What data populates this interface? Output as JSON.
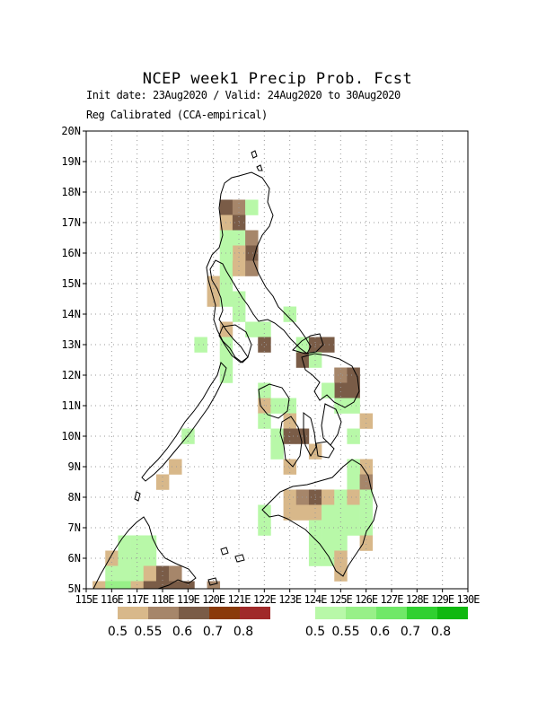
{
  "title": "NCEP week1 Precip Prob. Fcst",
  "subtitle1": "Init date: 23Aug2020 / Valid: 24Aug2020 to 30Aug2020",
  "subtitle2": "Reg Calibrated (CCA-empirical)",
  "map": {
    "lon_range": [
      115,
      130
    ],
    "lat_range": [
      5,
      20
    ],
    "grid": true,
    "lat_labels": [
      "5N",
      "6N",
      "7N",
      "8N",
      "9N",
      "10N",
      "11N",
      "12N",
      "13N",
      "14N",
      "15N",
      "16N",
      "17N",
      "18N",
      "19N",
      "20N"
    ],
    "lon_labels": [
      "115E",
      "116E",
      "117E",
      "118E",
      "119E",
      "120E",
      "121E",
      "122E",
      "123E",
      "124E",
      "125E",
      "126E",
      "127E",
      "128E",
      "129E",
      "130E"
    ]
  },
  "legend_below": {
    "labels": [
      "0.5",
      "0.55",
      "0.6",
      "0.7",
      "0.8"
    ],
    "colors": [
      "#d8b88a",
      "#a6866a",
      "#7a5c47",
      "#8a3a0a",
      "#a02a2a"
    ]
  },
  "legend_above": {
    "labels": [
      "0.5",
      "0.55",
      "0.6",
      "0.7",
      "0.8"
    ],
    "colors": [
      "#b8f8a8",
      "#98f088",
      "#70e868",
      "#30d030",
      "#10b810"
    ]
  },
  "colors": {
    "below": [
      "#d8b88a",
      "#a6866a",
      "#7a5c47"
    ],
    "above": [
      "#b8f8a8",
      "#98f088",
      "#70e868"
    ]
  },
  "cells": [
    {
      "lon": 120.5,
      "lat": 17.5,
      "cat": "B",
      "level": 3
    },
    {
      "lon": 121.0,
      "lat": 17.5,
      "cat": "B",
      "level": 2
    },
    {
      "lon": 121.5,
      "lat": 17.5,
      "cat": "A",
      "level": 1
    },
    {
      "lon": 120.5,
      "lat": 17.0,
      "cat": "B",
      "level": 1
    },
    {
      "lon": 121.0,
      "lat": 17.0,
      "cat": "B",
      "level": 3
    },
    {
      "lon": 121.0,
      "lat": 16.5,
      "cat": "A",
      "level": 1
    },
    {
      "lon": 120.5,
      "lat": 16.5,
      "cat": "A",
      "level": 1
    },
    {
      "lon": 121.5,
      "lat": 16.5,
      "cat": "B",
      "level": 2
    },
    {
      "lon": 121.5,
      "lat": 16.0,
      "cat": "B",
      "level": 3
    },
    {
      "lon": 121.0,
      "lat": 16.0,
      "cat": "B",
      "level": 1
    },
    {
      "lon": 120.5,
      "lat": 16.0,
      "cat": "A",
      "level": 1
    },
    {
      "lon": 120.5,
      "lat": 15.5,
      "cat": "A",
      "level": 1
    },
    {
      "lon": 121.0,
      "lat": 15.5,
      "cat": "B",
      "level": 1
    },
    {
      "lon": 121.5,
      "lat": 15.5,
      "cat": "B",
      "level": 2
    },
    {
      "lon": 120.0,
      "lat": 15.0,
      "cat": "B",
      "level": 1
    },
    {
      "lon": 120.5,
      "lat": 15.0,
      "cat": "A",
      "level": 1
    },
    {
      "lon": 120.0,
      "lat": 14.5,
      "cat": "B",
      "level": 1
    },
    {
      "lon": 120.5,
      "lat": 14.5,
      "cat": "A",
      "level": 1
    },
    {
      "lon": 121.0,
      "lat": 14.5,
      "cat": "A",
      "level": 1
    },
    {
      "lon": 121.0,
      "lat": 14.0,
      "cat": "A",
      "level": 1
    },
    {
      "lon": 120.5,
      "lat": 13.5,
      "cat": "B",
      "level": 1
    },
    {
      "lon": 121.5,
      "lat": 13.5,
      "cat": "A",
      "level": 1
    },
    {
      "lon": 122.0,
      "lat": 13.5,
      "cat": "A",
      "level": 1
    },
    {
      "lon": 123.0,
      "lat": 14.0,
      "cat": "A",
      "level": 1
    },
    {
      "lon": 119.5,
      "lat": 13.0,
      "cat": "A",
      "level": 1
    },
    {
      "lon": 120.5,
      "lat": 13.0,
      "cat": "A",
      "level": 1
    },
    {
      "lon": 122.0,
      "lat": 13.0,
      "cat": "B",
      "level": 3
    },
    {
      "lon": 123.5,
      "lat": 13.0,
      "cat": "A",
      "level": 1
    },
    {
      "lon": 124.0,
      "lat": 13.0,
      "cat": "B",
      "level": 3
    },
    {
      "lon": 124.5,
      "lat": 13.0,
      "cat": "B",
      "level": 3
    },
    {
      "lon": 123.5,
      "lat": 12.5,
      "cat": "B",
      "level": 3
    },
    {
      "lon": 124.0,
      "lat": 12.5,
      "cat": "A",
      "level": 1
    },
    {
      "lon": 120.5,
      "lat": 12.5,
      "cat": "A",
      "level": 1
    },
    {
      "lon": 120.5,
      "lat": 12.0,
      "cat": "A",
      "level": 1
    },
    {
      "lon": 125.0,
      "lat": 12.0,
      "cat": "B",
      "level": 2
    },
    {
      "lon": 125.5,
      "lat": 12.0,
      "cat": "B",
      "level": 3
    },
    {
      "lon": 125.0,
      "lat": 11.5,
      "cat": "B",
      "level": 3
    },
    {
      "lon": 125.5,
      "lat": 11.5,
      "cat": "B",
      "level": 3
    },
    {
      "lon": 122.0,
      "lat": 11.5,
      "cat": "A",
      "level": 1
    },
    {
      "lon": 124.5,
      "lat": 11.5,
      "cat": "A",
      "level": 1
    },
    {
      "lon": 122.0,
      "lat": 11.0,
      "cat": "B",
      "level": 1
    },
    {
      "lon": 122.5,
      "lat": 11.0,
      "cat": "A",
      "level": 1
    },
    {
      "lon": 123.0,
      "lat": 11.0,
      "cat": "A",
      "level": 1
    },
    {
      "lon": 125.0,
      "lat": 11.0,
      "cat": "A",
      "level": 1
    },
    {
      "lon": 125.5,
      "lat": 11.0,
      "cat": "A",
      "level": 1
    },
    {
      "lon": 122.0,
      "lat": 10.5,
      "cat": "A",
      "level": 1
    },
    {
      "lon": 123.0,
      "lat": 10.5,
      "cat": "B",
      "level": 1
    },
    {
      "lon": 126.0,
      "lat": 10.5,
      "cat": "B",
      "level": 1
    },
    {
      "lon": 122.5,
      "lat": 10.0,
      "cat": "A",
      "level": 1
    },
    {
      "lon": 123.0,
      "lat": 10.0,
      "cat": "B",
      "level": 3
    },
    {
      "lon": 123.5,
      "lat": 10.0,
      "cat": "B",
      "level": 3
    },
    {
      "lon": 119.0,
      "lat": 10.0,
      "cat": "A",
      "level": 1
    },
    {
      "lon": 125.5,
      "lat": 10.0,
      "cat": "A",
      "level": 1
    },
    {
      "lon": 122.5,
      "lat": 9.5,
      "cat": "A",
      "level": 1
    },
    {
      "lon": 124.0,
      "lat": 9.5,
      "cat": "B",
      "level": 1
    },
    {
      "lon": 123.0,
      "lat": 9.0,
      "cat": "B",
      "level": 1
    },
    {
      "lon": 118.5,
      "lat": 9.0,
      "cat": "B",
      "level": 1
    },
    {
      "lon": 126.0,
      "lat": 9.0,
      "cat": "B",
      "level": 1
    },
    {
      "lon": 125.5,
      "lat": 9.0,
      "cat": "A",
      "level": 1
    },
    {
      "lon": 118.0,
      "lat": 8.5,
      "cat": "B",
      "level": 1
    },
    {
      "lon": 125.5,
      "lat": 8.5,
      "cat": "A",
      "level": 1
    },
    {
      "lon": 126.0,
      "lat": 8.5,
      "cat": "B",
      "level": 2
    },
    {
      "lon": 123.0,
      "lat": 8.0,
      "cat": "B",
      "level": 1
    },
    {
      "lon": 123.5,
      "lat": 8.0,
      "cat": "B",
      "level": 2
    },
    {
      "lon": 124.0,
      "lat": 8.0,
      "cat": "B",
      "level": 3
    },
    {
      "lon": 124.5,
      "lat": 8.0,
      "cat": "B",
      "level": 1
    },
    {
      "lon": 125.0,
      "lat": 8.0,
      "cat": "A",
      "level": 1
    },
    {
      "lon": 125.5,
      "lat": 8.0,
      "cat": "B",
      "level": 1
    },
    {
      "lon": 126.0,
      "lat": 8.0,
      "cat": "A",
      "level": 1
    },
    {
      "lon": 122.0,
      "lat": 7.5,
      "cat": "A",
      "level": 1
    },
    {
      "lon": 123.0,
      "lat": 7.5,
      "cat": "B",
      "level": 1
    },
    {
      "lon": 123.5,
      "lat": 7.5,
      "cat": "B",
      "level": 1
    },
    {
      "lon": 124.0,
      "lat": 7.5,
      "cat": "B",
      "level": 1
    },
    {
      "lon": 124.5,
      "lat": 7.5,
      "cat": "A",
      "level": 1
    },
    {
      "lon": 125.0,
      "lat": 7.5,
      "cat": "A",
      "level": 1
    },
    {
      "lon": 125.5,
      "lat": 7.5,
      "cat": "A",
      "level": 1
    },
    {
      "lon": 126.0,
      "lat": 7.5,
      "cat": "A",
      "level": 1
    },
    {
      "lon": 122.0,
      "lat": 7.0,
      "cat": "A",
      "level": 1
    },
    {
      "lon": 124.0,
      "lat": 7.0,
      "cat": "A",
      "level": 1
    },
    {
      "lon": 124.5,
      "lat": 7.0,
      "cat": "A",
      "level": 1
    },
    {
      "lon": 125.0,
      "lat": 7.0,
      "cat": "A",
      "level": 1
    },
    {
      "lon": 125.5,
      "lat": 7.0,
      "cat": "A",
      "level": 1
    },
    {
      "lon": 126.0,
      "lat": 7.0,
      "cat": "A",
      "level": 1
    },
    {
      "lon": 124.0,
      "lat": 6.5,
      "cat": "A",
      "level": 1
    },
    {
      "lon": 124.5,
      "lat": 6.5,
      "cat": "A",
      "level": 1
    },
    {
      "lon": 125.0,
      "lat": 6.5,
      "cat": "A",
      "level": 1
    },
    {
      "lon": 126.0,
      "lat": 6.5,
      "cat": "B",
      "level": 1
    },
    {
      "lon": 124.0,
      "lat": 6.0,
      "cat": "A",
      "level": 1
    },
    {
      "lon": 124.5,
      "lat": 6.0,
      "cat": "A",
      "level": 1
    },
    {
      "lon": 125.0,
      "lat": 6.0,
      "cat": "B",
      "level": 1
    },
    {
      "lon": 125.0,
      "lat": 5.5,
      "cat": "B",
      "level": 1
    },
    {
      "lon": 116.5,
      "lat": 6.5,
      "cat": "A",
      "level": 1
    },
    {
      "lon": 117.0,
      "lat": 6.5,
      "cat": "A",
      "level": 1
    },
    {
      "lon": 117.5,
      "lat": 6.5,
      "cat": "A",
      "level": 1
    },
    {
      "lon": 116.0,
      "lat": 6.0,
      "cat": "B",
      "level": 1
    },
    {
      "lon": 116.5,
      "lat": 6.0,
      "cat": "A",
      "level": 1
    },
    {
      "lon": 117.0,
      "lat": 6.0,
      "cat": "A",
      "level": 1
    },
    {
      "lon": 117.5,
      "lat": 6.0,
      "cat": "A",
      "level": 1
    },
    {
      "lon": 116.0,
      "lat": 5.5,
      "cat": "A",
      "level": 1
    },
    {
      "lon": 116.5,
      "lat": 5.5,
      "cat": "A",
      "level": 1
    },
    {
      "lon": 117.0,
      "lat": 5.5,
      "cat": "A",
      "level": 1
    },
    {
      "lon": 117.5,
      "lat": 5.5,
      "cat": "B",
      "level": 1
    },
    {
      "lon": 118.0,
      "lat": 5.5,
      "cat": "B",
      "level": 3
    },
    {
      "lon": 118.5,
      "lat": 5.5,
      "cat": "B",
      "level": 2
    },
    {
      "lon": 118.0,
      "lat": 5.0,
      "cat": "B",
      "level": 3
    },
    {
      "lon": 118.5,
      "lat": 5.0,
      "cat": "B",
      "level": 3
    },
    {
      "lon": 119.0,
      "lat": 5.0,
      "cat": "B",
      "level": 3
    },
    {
      "lon": 115.5,
      "lat": 5.0,
      "cat": "B",
      "level": 1
    },
    {
      "lon": 116.0,
      "lat": 5.0,
      "cat": "A",
      "level": 2
    },
    {
      "lon": 116.5,
      "lat": 5.0,
      "cat": "A",
      "level": 2
    },
    {
      "lon": 117.0,
      "lat": 5.0,
      "cat": "B",
      "level": 1
    },
    {
      "lon": 117.5,
      "lat": 5.0,
      "cat": "B",
      "level": 3
    },
    {
      "lon": 120.0,
      "lat": 5.0,
      "cat": "B",
      "level": 2
    }
  ]
}
